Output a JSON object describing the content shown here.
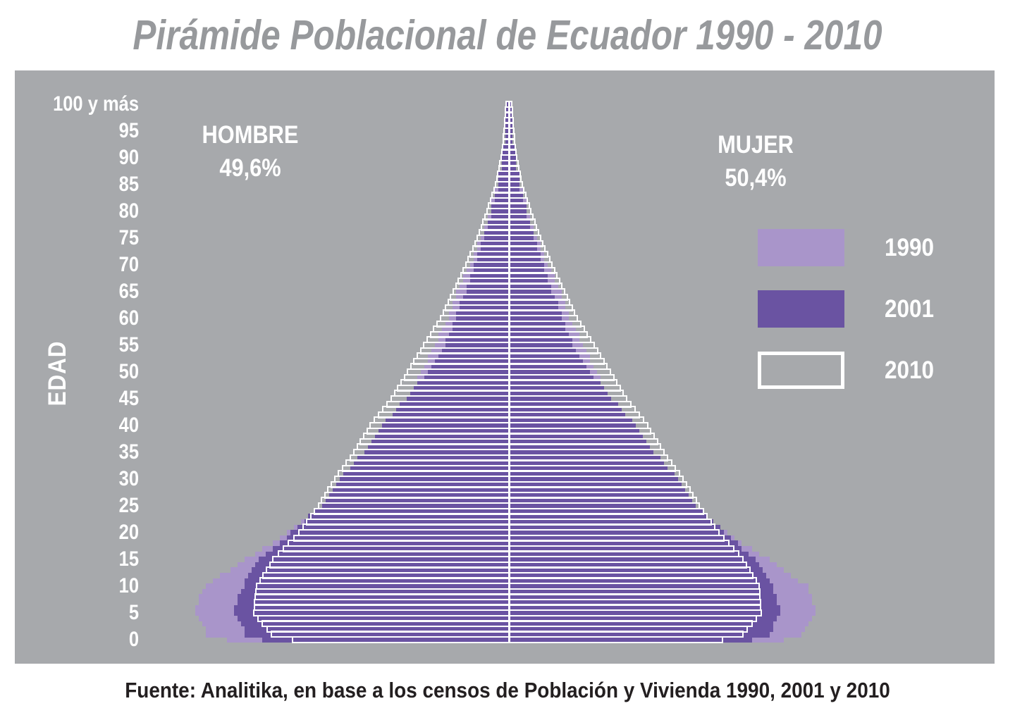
{
  "title": "Pirámide Poblacional de Ecuador 1990 - 2010",
  "source": "Fuente: Analitika, en base a los censos de Población y Vivienda 1990, 2001 y 2010",
  "colors": {
    "chart_background": "#a7a9ac",
    "series_1990": "#a995ca",
    "series_2001": "#6a53a2",
    "series_2010_outline": "#ffffff",
    "title_text": "#97999c",
    "axis_text": "#ffffff",
    "footer_text": "#231f20"
  },
  "labels": {
    "male": "HOMBRE",
    "male_pct": "49,6%",
    "female": "MUJER",
    "female_pct": "50,4%",
    "age_axis": "EDAD"
  },
  "legend": [
    {
      "label": "1990",
      "style": "filled-light-purple"
    },
    {
      "label": "2001",
      "style": "filled-dark-purple"
    },
    {
      "label": "2010",
      "style": "white-outline"
    }
  ],
  "chart_data": {
    "type": "bar",
    "subtype": "population-pyramid-horizontal",
    "title": "Pirámide Poblacional de Ecuador 1990 - 2010",
    "ylabel": "EDAD",
    "xlabel": "",
    "x_axis_note": "no numeric horizontal scale shown; values are relative half-widths in % of widest extent",
    "grid": false,
    "legend_position": "right",
    "male_share_pct": 49.6,
    "female_share_pct": 50.4,
    "ages": [
      0,
      5,
      10,
      15,
      20,
      25,
      30,
      35,
      40,
      45,
      50,
      55,
      60,
      65,
      70,
      75,
      80,
      85,
      90,
      95,
      100
    ],
    "age_tick_labels": [
      "0",
      "5",
      "10",
      "15",
      "20",
      "25",
      "30",
      "35",
      "40",
      "45",
      "50",
      "55",
      "60",
      "65",
      "70",
      "75",
      "80",
      "85",
      "90",
      "95",
      "100 y más"
    ],
    "series": [
      {
        "name": "1990",
        "male": [
          92,
          97,
          94,
          81,
          68,
          57,
          50,
          44,
          37,
          31,
          27,
          23,
          19,
          16,
          12,
          8.7,
          5.9,
          3.5,
          2.0,
          1.3,
          0.9
        ],
        "female": [
          89,
          95,
          92,
          80,
          67,
          56.5,
          50,
          44,
          37,
          31,
          27,
          23,
          19,
          16,
          12,
          8.7,
          5.9,
          3.5,
          2.0,
          1.3,
          0.9
        ]
      },
      {
        "name": "2001",
        "male": [
          80,
          85,
          82,
          77,
          67,
          58,
          52,
          45,
          39,
          32,
          25,
          20,
          16.5,
          13.5,
          10.4,
          7.8,
          5.4,
          3.3,
          2.0,
          1.3,
          0.9
        ],
        "female": [
          79,
          84,
          81,
          76,
          66.5,
          58,
          52,
          45,
          39,
          32,
          25,
          20,
          16.5,
          13.5,
          10.4,
          7.8,
          5.4,
          3.3,
          2.0,
          1.3,
          0.9
        ]
      },
      {
        "name": "2010",
        "male": [
          72,
          79,
          78,
          73,
          65,
          59,
          54,
          48,
          43,
          36.5,
          31.5,
          26.5,
          21.3,
          17.4,
          13.5,
          10,
          7,
          4.3,
          2.6,
          1.7,
          1.1
        ],
        "female": [
          71,
          78,
          77.5,
          72.5,
          65,
          59,
          54,
          48,
          43,
          36.5,
          31.5,
          26.5,
          21.3,
          17.4,
          13.5,
          10,
          7,
          4.3,
          2.6,
          1.7,
          1.1
        ]
      }
    ]
  }
}
